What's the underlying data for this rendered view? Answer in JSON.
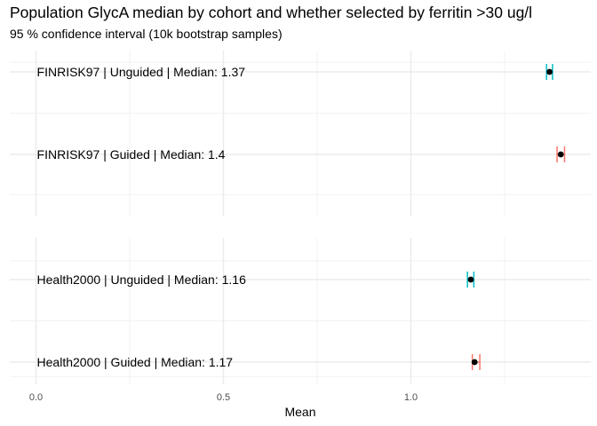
{
  "chart_data": {
    "type": "errorbar",
    "title": "Population GlycA median by cohort and whether selected by ferritin >30 ug/l",
    "subtitle": "95 % confidence interval (10k bootstrap samples)",
    "xlabel": "Mean",
    "ylabel": "",
    "xlim": [
      -0.07,
      1.48
    ],
    "x_ticks": [
      {
        "value": 0.0,
        "label": "0.0"
      },
      {
        "value": 0.5,
        "label": "0.5"
      },
      {
        "value": 1.0,
        "label": "1.0"
      }
    ],
    "grid": true,
    "panels": [
      {
        "cohort": "FINRISK97",
        "rows": [
          {
            "label": "FINRISK97 | Unguided | Median: 1.37",
            "group": "Unguided",
            "mean": 1.37,
            "ci_low": 1.362,
            "ci_high": 1.378,
            "color": "#00BFC4"
          },
          {
            "label": "FINRISK97 | Guided | Median: 1.4",
            "group": "Guided",
            "mean": 1.4,
            "ci_low": 1.39,
            "ci_high": 1.41,
            "color": "#F8766D"
          }
        ]
      },
      {
        "cohort": "Health2000",
        "rows": [
          {
            "label": "Health2000 | Unguided | Median: 1.16",
            "group": "Unguided",
            "mean": 1.16,
            "ci_low": 1.151,
            "ci_high": 1.168,
            "color": "#00BFC4"
          },
          {
            "label": "Health2000 | Guided | Median: 1.17",
            "group": "Guided",
            "mean": 1.17,
            "ci_low": 1.164,
            "ci_high": 1.184,
            "color": "#F8766D"
          }
        ]
      }
    ]
  }
}
